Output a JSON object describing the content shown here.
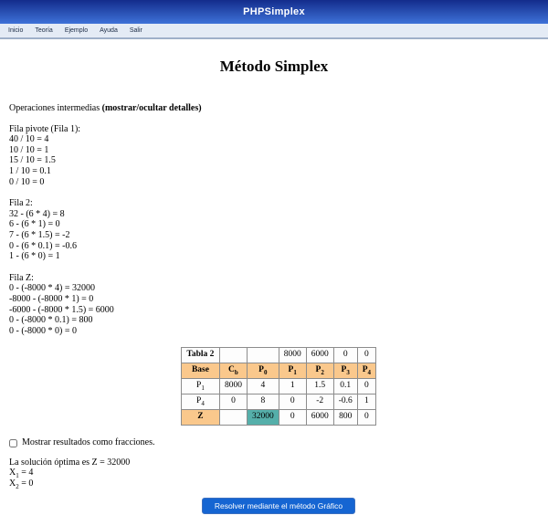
{
  "banner": {
    "title": "PHPSimplex"
  },
  "menu": {
    "items": [
      "Inicio",
      "Teoría",
      "Ejemplo",
      "Ayuda",
      "Salir"
    ]
  },
  "page": {
    "title": "Método Simplex"
  },
  "operations": {
    "intro_text": "Operaciones intermedias ",
    "toggle_text": "(mostrar/ocultar detalles)",
    "blocks": [
      {
        "title": "Fila pivote (Fila 1):",
        "lines": [
          "40 / 10 = 4",
          "10 / 10 = 1",
          "15 / 10 = 1.5",
          "1 / 10 = 0.1",
          "0 / 10 = 0"
        ]
      },
      {
        "title": "Fila 2:",
        "lines": [
          "32 - (6 * 4) = 8",
          "6 - (6 * 1) = 0",
          "7 - (6 * 1.5) = -2",
          "0 - (6 * 0.1) = -0.6",
          "1 - (6 * 0) = 1"
        ]
      },
      {
        "title": "Fila Z:",
        "lines": [
          "0 - (-8000 * 4) = 32000",
          "-8000 - (-8000 * 1) = 0",
          "-6000 - (-8000 * 1.5) = 6000",
          "0 - (-8000 * 0.1) = 800",
          "0 - (-8000 * 0) = 0"
        ]
      }
    ]
  },
  "simplex_table": {
    "top_row": [
      "Tabla 2",
      "",
      "",
      "8000",
      "6000",
      "0",
      "0"
    ],
    "header_row": [
      {
        "base": "Base",
        "sub": ""
      },
      {
        "base": "C",
        "sub": "b"
      },
      {
        "base": "P",
        "sub": "0"
      },
      {
        "base": "P",
        "sub": "1"
      },
      {
        "base": "P",
        "sub": "2"
      },
      {
        "base": "P",
        "sub": "3"
      },
      {
        "base": "P",
        "sub": "4"
      }
    ],
    "rows": [
      {
        "label_base": "P",
        "label_sub": "1",
        "values": [
          "8000",
          "4",
          "1",
          "1.5",
          "0.1",
          "0"
        ]
      },
      {
        "label_base": "P",
        "label_sub": "4",
        "values": [
          "0",
          "8",
          "0",
          "-2",
          "-0.6",
          "1"
        ]
      }
    ],
    "z_row": {
      "label": "Z",
      "cb": "",
      "values": [
        "32000",
        "0",
        "6000",
        "800",
        "0"
      ]
    }
  },
  "fractions": {
    "label": "Mostrar resultados como fracciones.",
    "checked": false
  },
  "solution": {
    "optimal_line": "La solución óptima es Z = 32000",
    "vars": [
      {
        "base": "X",
        "sub": "1",
        "eq": " = 4"
      },
      {
        "base": "X",
        "sub": "2",
        "eq": " = 0"
      }
    ]
  },
  "footer": {
    "solve_button_label": "Resolver mediante el método Gráfico"
  },
  "colors": {
    "banner_gradient_top": "#132c8c",
    "banner_gradient_bottom": "#3e72d8",
    "menu_background": "#e4ebf5",
    "table_header_orange": "#fac88c",
    "pivot_highlight_teal": "#55afaa",
    "button_blue": "#1565d2"
  }
}
